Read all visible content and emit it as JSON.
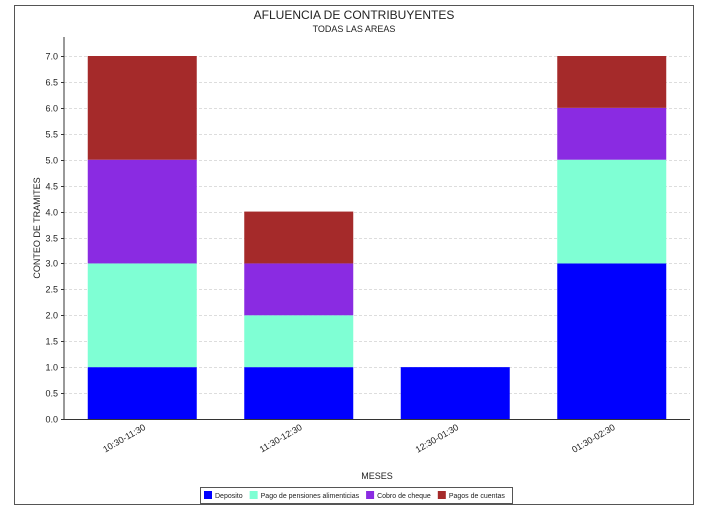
{
  "chart_data": {
    "type": "bar",
    "stacked": true,
    "title": "AFLUENCIA DE CONTRIBUYENTES",
    "subtitle": "TODAS LAS AREAS",
    "xlabel": "MESES",
    "ylabel": "CONTEO DE TRAMITES",
    "ylim": [
      0,
      7
    ],
    "yticks": [
      "0.0",
      "0.5",
      "1.0",
      "1.5",
      "2.0",
      "2.5",
      "3.0",
      "3.5",
      "4.0",
      "4.5",
      "5.0",
      "5.5",
      "6.0",
      "6.5",
      "7.0"
    ],
    "grid": true,
    "legend_position": "bottom",
    "categories": [
      "10:30-11:30",
      "11:30-12:30",
      "12:30-01:30",
      "01:30-02:30"
    ],
    "series": [
      {
        "name": "Deposito",
        "color": "#0000FF",
        "values": [
          1,
          1,
          1,
          3
        ]
      },
      {
        "name": "Pago de pensiones alimenticias",
        "color": "#7FFFD4",
        "values": [
          2,
          1,
          0,
          2
        ]
      },
      {
        "name": "Cobro de cheque",
        "color": "#8A2BE2",
        "values": [
          2,
          1,
          0,
          1
        ]
      },
      {
        "name": "Pagos de cuentas",
        "color": "#A52A2A",
        "values": [
          2,
          1,
          0,
          1
        ]
      }
    ]
  }
}
